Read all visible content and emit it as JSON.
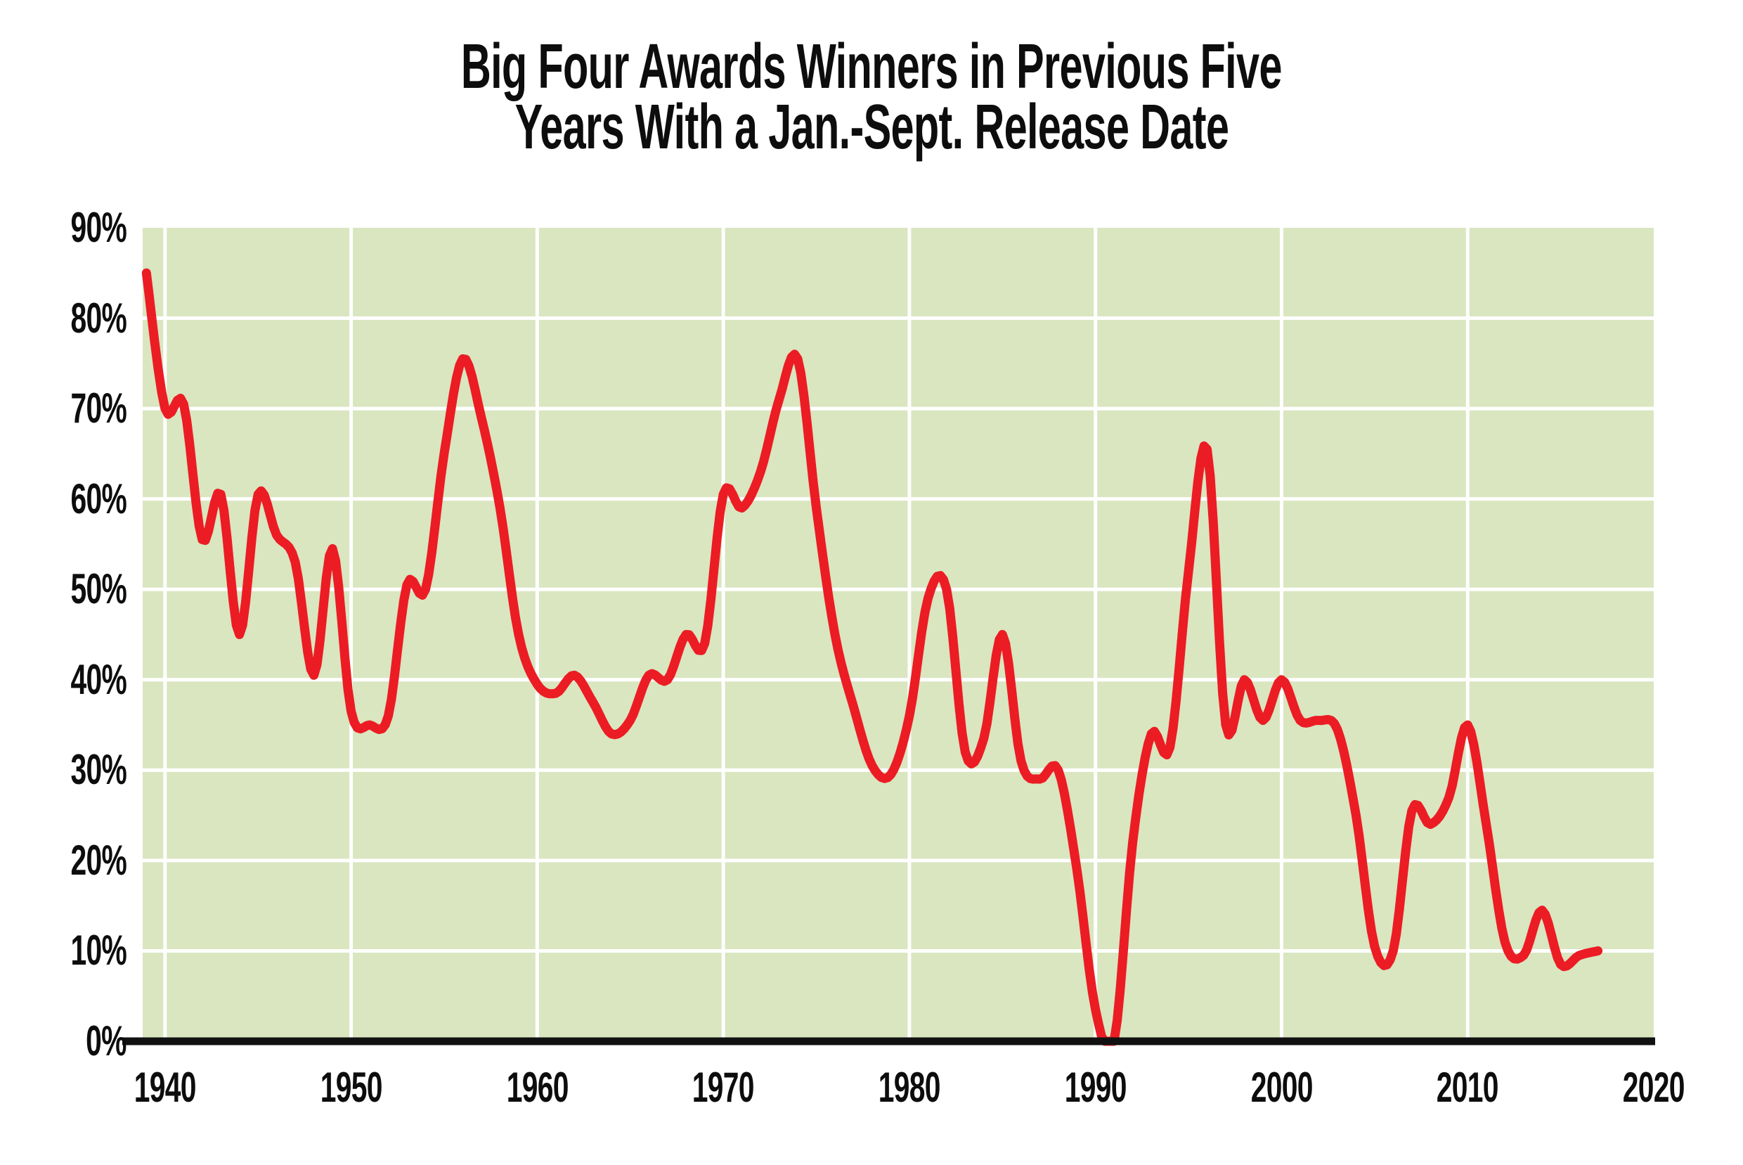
{
  "title": {
    "line1": "Big Four Awards Winners in Previous Five",
    "line2": "Years With a Jan.-Sept. Release Date"
  },
  "chart_data": {
    "type": "line",
    "title": "Big Four Awards Winners in Previous Five Years With a Jan.-Sept. Release Date",
    "xlabel": "",
    "ylabel": "",
    "xlim": [
      1938.8,
      2020
    ],
    "ylim": [
      0,
      90
    ],
    "grid": true,
    "legend_position": "none",
    "x_ticks": [
      1940,
      1950,
      1960,
      1970,
      1980,
      1990,
      2000,
      2010,
      2020
    ],
    "x_tick_labels": [
      "1940",
      "1950",
      "1960",
      "1970",
      "1980",
      "1990",
      "2000",
      "2010",
      "2020"
    ],
    "y_ticks": [
      0,
      10,
      20,
      30,
      40,
      50,
      60,
      70,
      80,
      90
    ],
    "y_tick_labels": [
      "0%",
      "10%",
      "20%",
      "30%",
      "40%",
      "50%",
      "60%",
      "70%",
      "80%",
      "90%"
    ],
    "x": [
      1939,
      1940,
      1941,
      1942,
      1943,
      1944,
      1945,
      1946,
      1947,
      1948,
      1949,
      1950,
      1951,
      1952,
      1953,
      1954,
      1955,
      1956,
      1957,
      1958,
      1959,
      1960,
      1961,
      1962,
      1963,
      1964,
      1965,
      1966,
      1967,
      1968,
      1969,
      1970,
      1971,
      1972,
      1973,
      1974,
      1975,
      1976,
      1977,
      1978,
      1979,
      1980,
      1981,
      1982,
      1983,
      1984,
      1985,
      1986,
      1987,
      1988,
      1989,
      1990,
      1991,
      1992,
      1993,
      1994,
      1995,
      1996,
      1997,
      1998,
      1999,
      2000,
      2001,
      2002,
      2003,
      2004,
      2005,
      2006,
      2007,
      2008,
      2009,
      2010,
      2011,
      2012,
      2013,
      2014,
      2015,
      2016,
      2017
    ],
    "values": [
      85,
      70,
      70.5,
      55.5,
      60.5,
      45,
      60.5,
      56,
      53,
      40.5,
      54.5,
      36.5,
      35,
      36,
      50.5,
      50,
      65,
      75.5,
      69,
      59,
      45,
      39.5,
      38.5,
      40.5,
      37.5,
      34,
      35.5,
      40.5,
      40,
      45,
      44,
      60.5,
      59,
      63,
      71,
      75.5,
      59,
      45,
      37,
      30.5,
      29.5,
      36,
      49,
      50,
      32,
      33.5,
      45,
      31,
      29,
      30,
      19,
      3.5,
      0,
      22,
      34,
      32.5,
      52,
      65.5,
      35,
      40,
      35.5,
      40,
      35.5,
      35.5,
      34.5,
      25,
      10.5,
      10,
      25.5,
      24,
      27,
      35,
      24,
      11,
      9.5,
      14.5,
      8.5,
      9.5,
      10
    ],
    "unit": "%",
    "colors": {
      "line": "#ec1c24",
      "plot_background": "#d9e6c0",
      "gridline": "#ffffff",
      "axis": "#111111",
      "text": "#0d0d0d"
    }
  }
}
